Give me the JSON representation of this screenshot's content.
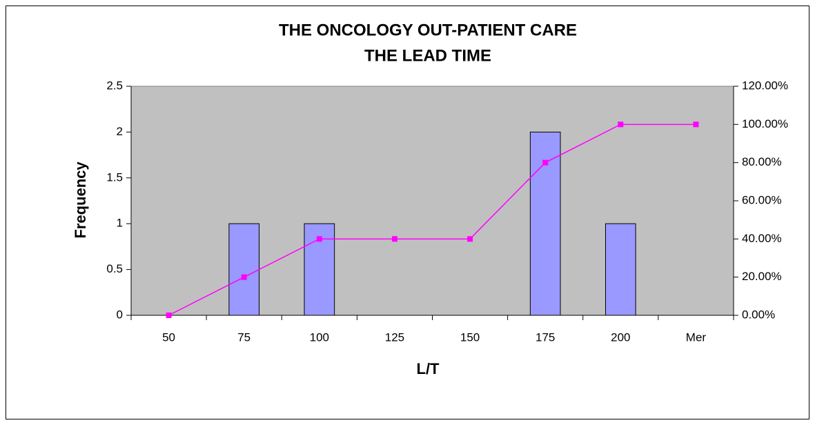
{
  "chart_data": {
    "type": "bar",
    "title": "THE ONCOLOGY OUT-PATIENT CARE",
    "subtitle": "THE LEAD TIME",
    "x_label": "L/T",
    "y_label": "Frequency",
    "categories": [
      "50",
      "75",
      "100",
      "125",
      "150",
      "175",
      "200",
      "Mer"
    ],
    "series": [
      {
        "type": "bar",
        "color": "#9999ff",
        "values": [
          0,
          1,
          1,
          0,
          0,
          2,
          1,
          0
        ]
      },
      {
        "type": "line",
        "color": "#ff00ff",
        "axis": "y2",
        "values": [
          0,
          20,
          40,
          40,
          40,
          80,
          100,
          100
        ]
      }
    ],
    "ylim": [
      0,
      2.5
    ],
    "yticks": [
      0,
      0.5,
      1,
      1.5,
      2,
      2.5
    ],
    "y2lim": [
      0,
      120
    ],
    "y2ticks": [
      {
        "value": 0,
        "label": "0.00%"
      },
      {
        "value": 20,
        "label": "20.00%"
      },
      {
        "value": 40,
        "label": "40.00%"
      },
      {
        "value": 60,
        "label": "60.00%"
      },
      {
        "value": 80,
        "label": "80.00%"
      },
      {
        "value": 100,
        "label": "100.00%"
      },
      {
        "value": 120,
        "label": "120.00%"
      }
    ],
    "plot_background": "#c0c0c0"
  }
}
